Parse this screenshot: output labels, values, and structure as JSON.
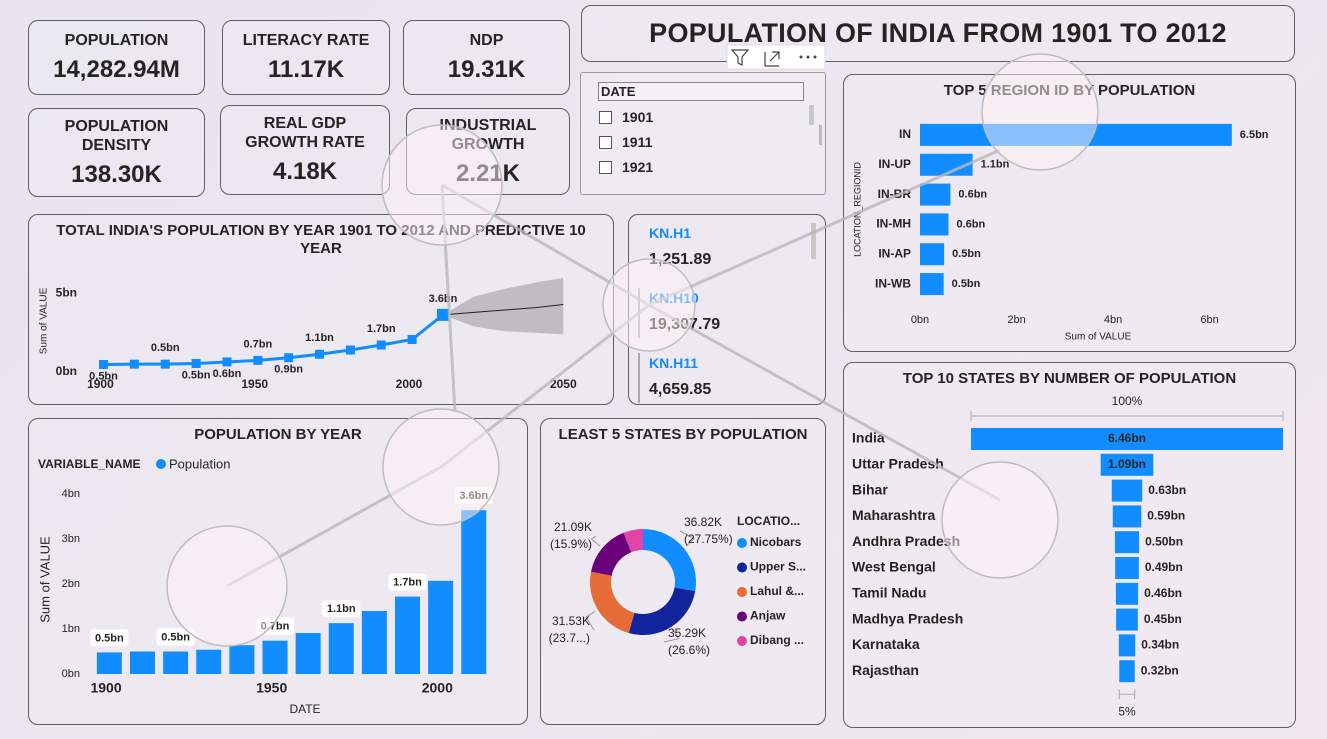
{
  "title": "POPULATION OF INDIA FROM 1901 TO 2012",
  "kpis": [
    {
      "label": "POPULATION",
      "value": "14,282.94M"
    },
    {
      "label": "LITERACY RATE",
      "value": "11.17K"
    },
    {
      "label": "NDP",
      "value": "19.31K"
    },
    {
      "label": "POPULATION DENSITY",
      "value": "138.30K"
    },
    {
      "label": "REAL GDP GROWTH RATE",
      "value": "4.18K"
    },
    {
      "label": "INDUSTRIAL GROWTH",
      "value": "2.21K"
    }
  ],
  "slicer": {
    "header": "DATE",
    "items": [
      "1901",
      "1911",
      "1921"
    ]
  },
  "card": {
    "rows": [
      {
        "label": "KN.H1",
        "value": "1,251.89"
      },
      {
        "label": "KN.H10",
        "value": "19,307.79"
      },
      {
        "label": "KN.H11",
        "value": "4,659.85"
      }
    ]
  },
  "chart_data": [
    {
      "type": "line",
      "title": "TOTAL INDIA'S POPULATION BY YEAR 1901 TO 2012 AND PREDICTIVE 10 YEAR",
      "y_label": "Sum of VALUE",
      "color": "#118dff",
      "x": [
        1901,
        1911,
        1921,
        1931,
        1941,
        1951,
        1961,
        1971,
        1981,
        1991,
        2001,
        2011
      ],
      "values": [
        0.48,
        0.5,
        0.5,
        0.54,
        0.64,
        0.74,
        0.91,
        1.13,
        1.4,
        1.72,
        2.07,
        3.64
      ],
      "value_labels": [
        "0.5bn",
        null,
        "0.5bn",
        "0.5bn",
        "0.6bn",
        "0.7bn",
        "0.9bn",
        "1.1bn",
        null,
        "1.7bn",
        null,
        "3.6bn"
      ],
      "forecast": {
        "x": [
          2011,
          2021,
          2031,
          2041,
          2050
        ],
        "values": [
          3.64,
          3.8,
          3.95,
          4.1,
          4.3
        ],
        "lower": [
          3.64,
          2.9,
          2.6,
          2.5,
          2.4
        ],
        "upper": [
          3.64,
          4.8,
          5.3,
          5.7,
          6.0
        ],
        "color": "#888888"
      },
      "xlim": [
        1895,
        2058
      ],
      "xticks": [
        1900,
        1950,
        2000,
        2050
      ],
      "ylim": [
        0,
        6.5
      ],
      "yticks": [
        {
          "value": 0,
          "label": "0bn"
        },
        {
          "value": 5,
          "label": "5bn"
        }
      ]
    },
    {
      "type": "hbar",
      "title": "TOP 5 REGION ID BY POPULATION",
      "categories": [
        "IN",
        "IN-UP",
        "IN-BR",
        "IN-MH",
        "IN-AP",
        "IN-WB"
      ],
      "values": [
        6.46,
        1.09,
        0.63,
        0.59,
        0.5,
        0.49
      ],
      "value_labels": [
        "6.5bn",
        "1.1bn",
        "0.6bn",
        "0.6bn",
        "0.5bn",
        "0.5bn"
      ],
      "color": "#118dff",
      "x_label": "Sum of VALUE",
      "y_label": "LOCATION_REGIONID",
      "xlim": [
        0,
        7.5
      ],
      "xticks": [
        {
          "value": 0,
          "label": "0bn"
        },
        {
          "value": 2,
          "label": "2bn"
        },
        {
          "value": 4,
          "label": "4bn"
        },
        {
          "value": 6,
          "label": "6bn"
        }
      ]
    },
    {
      "type": "bar",
      "title": "POPULATION BY YEAR",
      "legend_title": "VARIABLE_NAME",
      "x_label": "DATE",
      "y_label": "Sum of VALUE",
      "x": [
        1901,
        1911,
        1921,
        1931,
        1941,
        1951,
        1961,
        1971,
        1981,
        1991,
        2001,
        2011
      ],
      "series": [
        {
          "name": "Population",
          "color": "#118dff",
          "values": [
            0.48,
            0.5,
            0.5,
            0.54,
            0.64,
            0.74,
            0.91,
            1.13,
            1.4,
            1.72,
            2.07,
            3.64
          ],
          "value_labels": [
            "0.5bn",
            null,
            "0.5bn",
            null,
            null,
            "0.7bn",
            null,
            "1.1bn",
            null,
            "1.7bn",
            null,
            "3.6bn"
          ]
        }
      ],
      "xlim": [
        1895,
        2015
      ],
      "xticks": [
        1900,
        1950,
        2000
      ],
      "ylim": [
        0,
        4.2
      ],
      "yticks": [
        {
          "value": 0,
          "label": "0bn"
        },
        {
          "value": 1,
          "label": "1bn"
        },
        {
          "value": 2,
          "label": "2bn"
        },
        {
          "value": 3,
          "label": "3bn"
        },
        {
          "value": 4,
          "label": "4bn"
        }
      ]
    },
    {
      "type": "donut",
      "title": "LEAST 5 STATES BY POPULATION",
      "legend_title": "LOCATIO...",
      "categories": [
        "Nicobars",
        "Upper S...",
        "Lahul &...",
        "Anjaw",
        "Dibang ..."
      ],
      "values": [
        36.82,
        35.29,
        31.53,
        21.09,
        7.95
      ],
      "value_labels": [
        "36.82K",
        "35.29K",
        "31.53K",
        "21.09K",
        null
      ],
      "percent_labels": [
        "(27.75%)",
        "(26.6%)",
        "(23.7...)",
        "(15.9%)",
        null
      ],
      "colors": [
        "#118dff",
        "#12239e",
        "#e66c37",
        "#6b007b",
        "#e044a7"
      ]
    },
    {
      "type": "funnel",
      "title": "TOP 10 STATES BY NUMBER OF POPULATION",
      "categories": [
        "India",
        "Uttar Pradesh",
        "Bihar",
        "Maharashtra",
        "Andhra Pradesh",
        "West Bengal",
        "Tamil Nadu",
        "Madhya Pradesh",
        "Karnataka",
        "Rajasthan"
      ],
      "values": [
        6.46,
        1.09,
        0.63,
        0.59,
        0.5,
        0.49,
        0.46,
        0.45,
        0.34,
        0.32
      ],
      "value_labels": [
        "6.46bn",
        "1.09bn",
        "0.63bn",
        "0.59bn",
        "0.50bn",
        "0.49bn",
        "0.46bn",
        "0.45bn",
        "0.34bn",
        "0.32bn"
      ],
      "top_label": "100%",
      "bottom_label": "5%",
      "color": "#118dff"
    }
  ]
}
